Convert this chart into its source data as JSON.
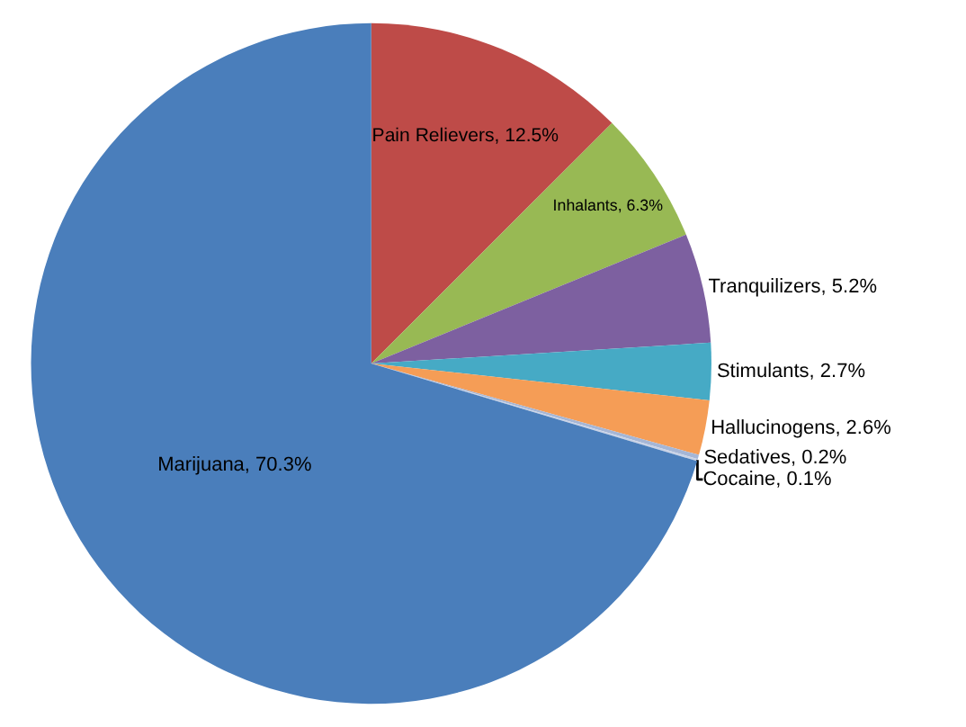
{
  "chart_data": {
    "type": "pie",
    "categories": [
      "Pain Relievers",
      "Inhalants",
      "Tranquilizers",
      "Stimulants",
      "Hallucinogens",
      "Sedatives",
      "Cocaine",
      "Marijuana"
    ],
    "values": [
      12.5,
      6.3,
      5.2,
      2.7,
      2.6,
      0.2,
      0.1,
      70.3
    ],
    "colors": [
      "#be4b48",
      "#98b954",
      "#7d60a0",
      "#46aac5",
      "#f59d56",
      "#a5b6d6",
      "#c8d2e6",
      "#4a7ebb"
    ],
    "value_labels": [
      "12.5%",
      "6.3%",
      "5.2%",
      "2.7%",
      "2.6%",
      "0.2%",
      "0.1%",
      "70.3%"
    ],
    "legend": false
  }
}
